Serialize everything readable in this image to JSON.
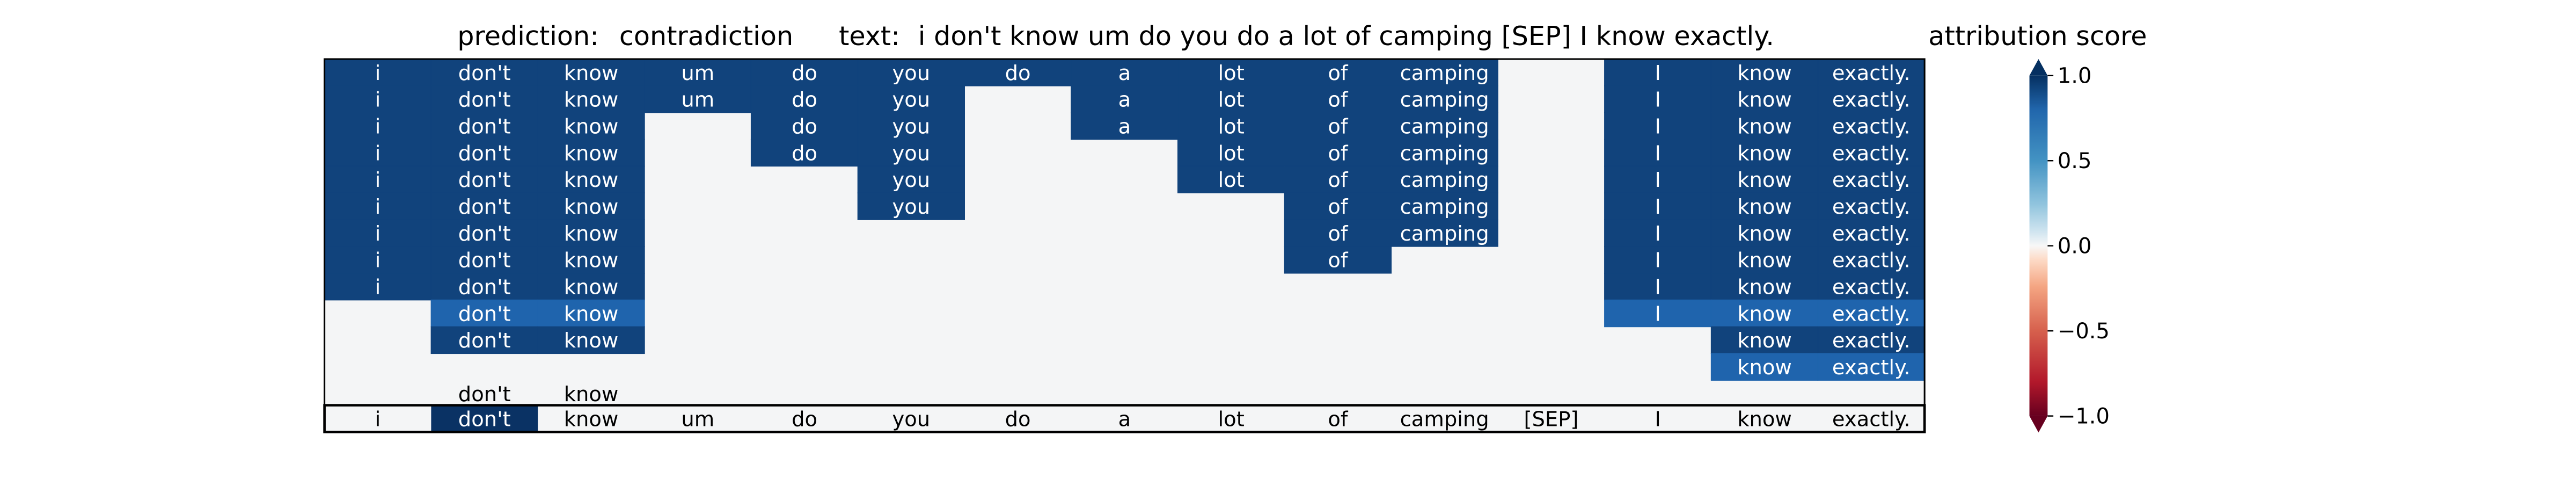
{
  "chart_data": {
    "type": "heatmap",
    "header": {
      "prediction_label": "prediction:",
      "prediction_value": "contradiction",
      "text_label": "text:",
      "text_value": "i don't know um do you do a lot of camping [SEP] I know exactly."
    },
    "tokens": [
      "i",
      "don't",
      "know",
      "um",
      "do",
      "you",
      "do",
      "a",
      "lot",
      "of",
      "camping",
      "[SEP]",
      "I",
      "know",
      "exactly."
    ],
    "rows": [
      [
        1,
        1,
        1,
        1,
        1,
        1,
        1,
        1,
        1,
        1,
        1,
        0,
        1,
        1,
        1
      ],
      [
        1,
        1,
        1,
        1,
        1,
        1,
        0,
        1,
        1,
        1,
        1,
        0,
        1,
        1,
        1
      ],
      [
        1,
        1,
        1,
        0,
        1,
        1,
        0,
        1,
        1,
        1,
        1,
        0,
        1,
        1,
        1
      ],
      [
        1,
        1,
        1,
        0,
        1,
        1,
        0,
        0,
        1,
        1,
        1,
        0,
        1,
        1,
        1
      ],
      [
        1,
        1,
        1,
        0,
        0,
        1,
        0,
        0,
        1,
        1,
        1,
        0,
        1,
        1,
        1
      ],
      [
        1,
        1,
        1,
        0,
        0,
        1,
        0,
        0,
        0,
        1,
        1,
        0,
        1,
        1,
        1
      ],
      [
        1,
        1,
        1,
        0,
        0,
        0,
        0,
        0,
        0,
        1,
        1,
        0,
        1,
        1,
        1
      ],
      [
        1,
        1,
        1,
        0,
        0,
        0,
        0,
        0,
        0,
        1,
        0,
        0,
        1,
        1,
        1
      ],
      [
        1,
        1,
        1,
        0,
        0,
        0,
        0,
        0,
        0,
        0,
        0,
        0,
        1,
        1,
        1
      ],
      [
        0,
        0.7,
        0.7,
        0,
        0,
        0,
        0,
        0,
        0,
        0,
        0,
        0,
        0.7,
        0.7,
        0.7
      ],
      [
        0,
        1.1,
        1.1,
        0,
        0,
        0,
        0,
        0,
        0,
        0,
        0,
        0,
        0,
        1.1,
        1.1
      ],
      [
        0,
        0,
        0,
        0,
        0,
        0,
        0,
        0,
        0,
        0,
        0,
        0,
        0,
        0.7,
        0.7
      ],
      [
        0,
        0,
        0,
        0,
        0,
        0,
        0,
        0,
        0,
        0,
        0,
        0,
        0,
        0,
        0
      ]
    ],
    "row_labels_shown_on_zero": {
      "12": [
        1,
        2
      ]
    },
    "attribution": [
      0,
      1.2,
      0,
      0,
      0,
      0,
      0,
      0,
      0,
      0,
      0,
      0,
      0,
      0,
      0
    ],
    "colorbar": {
      "title": "attribution score",
      "range": [
        -1.0,
        1.0
      ],
      "ticks": [
        "1.0",
        "0.5",
        "0.0",
        "−0.5",
        "−1.0"
      ],
      "colormap": "RdBu",
      "extend": "both"
    },
    "colors": {
      "neutral": "#f4f5f6",
      "strong_positive": "#11437c",
      "mid_positive": "#1f64ad",
      "max_positive": "#0a3264",
      "text_on_dark": "#ffffff",
      "text_on_light": "#000000"
    }
  }
}
